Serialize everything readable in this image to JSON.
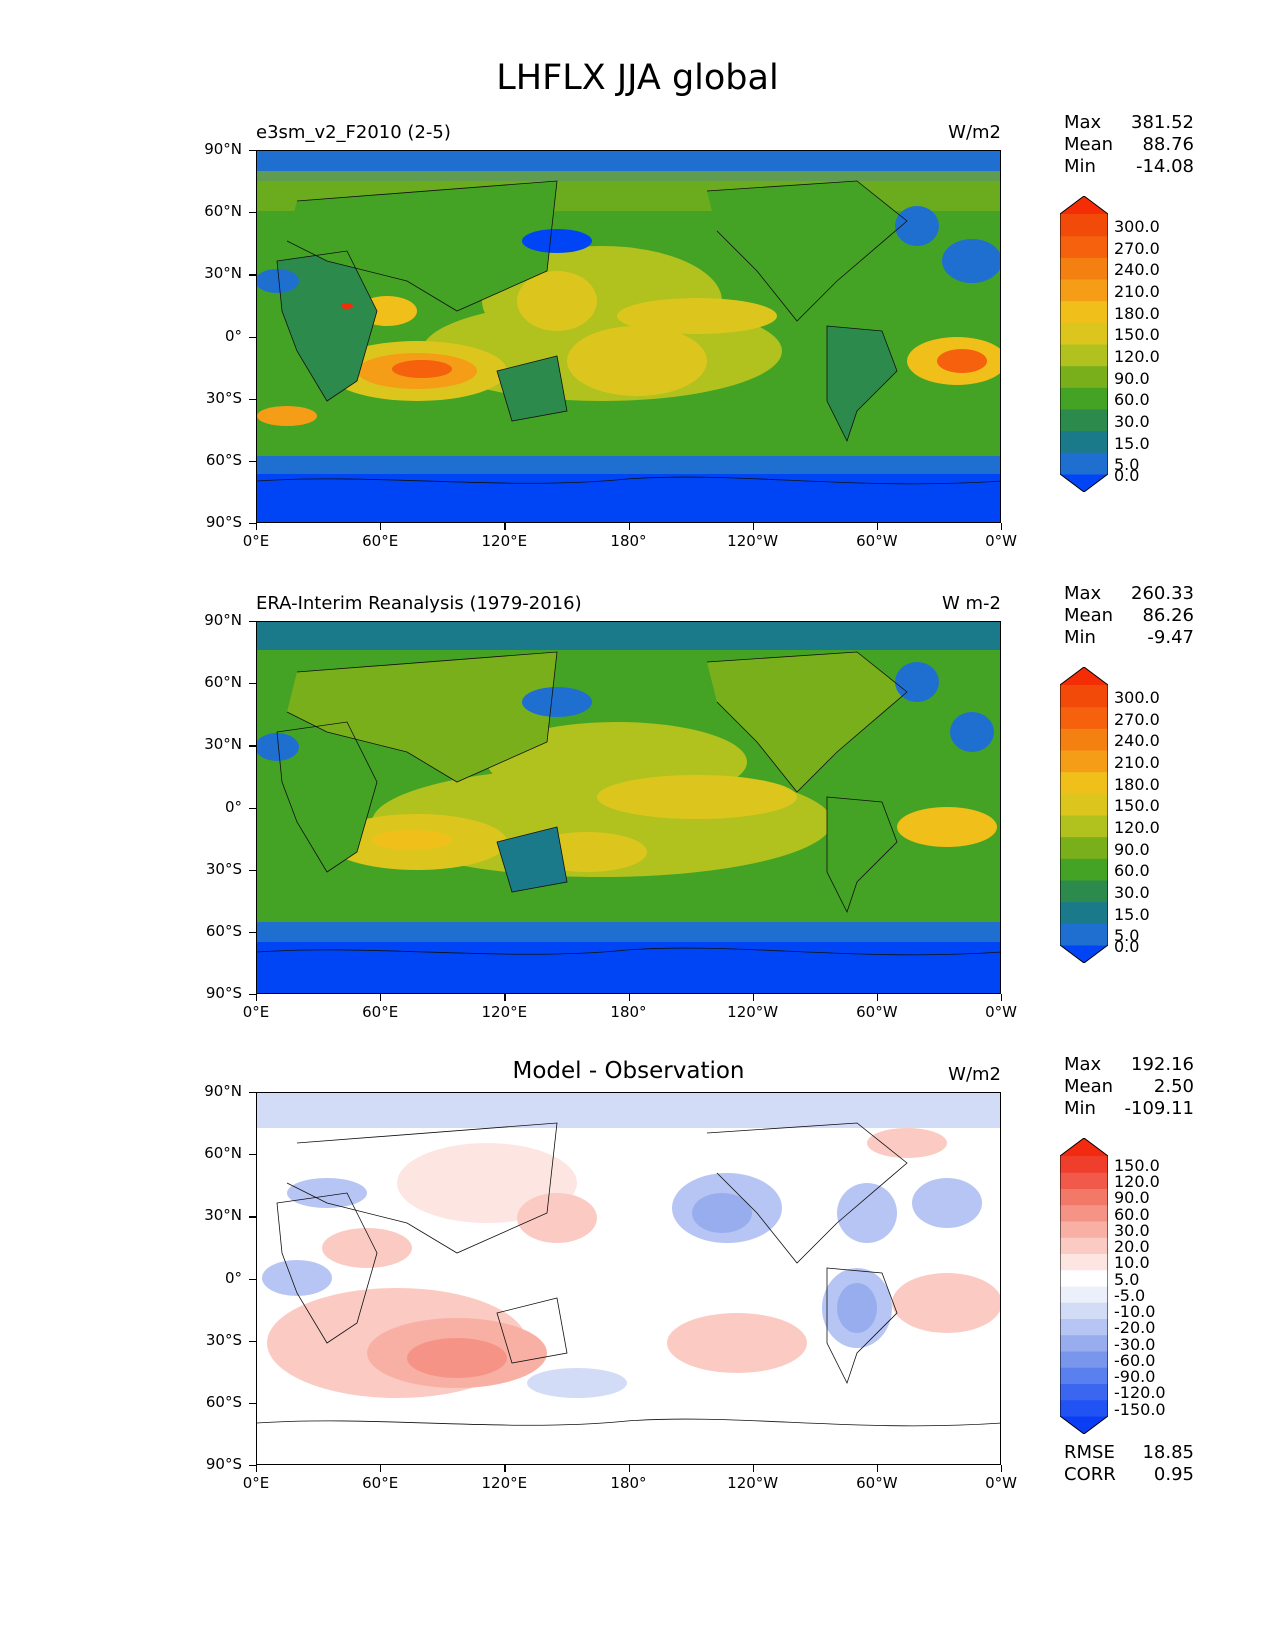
{
  "figure_title": "LHFLX JJA global",
  "lat_ticks": [
    "90°N",
    "60°N",
    "30°N",
    "0°",
    "30°S",
    "60°S",
    "90°S"
  ],
  "lon_ticks": [
    "0°E",
    "60°E",
    "120°E",
    "180°",
    "120°W",
    "60°W",
    "0°W"
  ],
  "panels": [
    {
      "title_left": "e3sm_v2_F2010 (2-5)",
      "title_center": "",
      "units": "W/m2",
      "stats": {
        "max_label": "Max",
        "max": "381.52",
        "mean_label": "Mean",
        "mean": "88.76",
        "min_label": "Min",
        "min": "-14.08"
      },
      "colorbar": {
        "labels": [
          "300.0",
          "270.0",
          "240.0",
          "210.0",
          "180.0",
          "150.0",
          "120.0",
          "90.0",
          "60.0",
          "30.0",
          "15.0",
          "5.0",
          "0.0"
        ],
        "colors": [
          "#0045f5",
          "#1f6fd1",
          "#1b7a8a",
          "#2c8a4c",
          "#44a324",
          "#7aaf1c",
          "#b1c11e",
          "#dcc61e",
          "#f0bf1a",
          "#f59d17",
          "#f58012",
          "#f5610c",
          "#f24a08",
          "#f42d06"
        ]
      }
    },
    {
      "title_left": "ERA-Interim Reanalysis (1979-2016)",
      "title_center": "",
      "units": "W m-2",
      "stats": {
        "max_label": "Max",
        "max": "260.33",
        "mean_label": "Mean",
        "mean": "86.26",
        "min_label": "Min",
        "min": "-9.47"
      },
      "colorbar": {
        "labels": [
          "300.0",
          "270.0",
          "240.0",
          "210.0",
          "180.0",
          "150.0",
          "120.0",
          "90.0",
          "60.0",
          "30.0",
          "15.0",
          "5.0",
          "0.0"
        ],
        "colors": [
          "#0045f5",
          "#1f6fd1",
          "#1b7a8a",
          "#2c8a4c",
          "#44a324",
          "#7aaf1c",
          "#b1c11e",
          "#dcc61e",
          "#f0bf1a",
          "#f59d17",
          "#f58012",
          "#f5610c",
          "#f24a08",
          "#f42d06"
        ]
      }
    },
    {
      "title_left": "",
      "title_center": "Model - Observation",
      "units": "W/m2",
      "stats": {
        "max_label": "Max",
        "max": "192.16",
        "mean_label": "Mean",
        "mean": "2.50",
        "min_label": "Min",
        "min": "-109.11"
      },
      "colorbar": {
        "labels": [
          "150.0",
          "120.0",
          "90.0",
          "60.0",
          "30.0",
          "20.0",
          "10.0",
          "5.0",
          "-5.0",
          "-10.0",
          "-20.0",
          "-30.0",
          "-60.0",
          "-90.0",
          "-120.0",
          "-150.0"
        ],
        "colors": [
          "#0b3df5",
          "#2152f3",
          "#3b66ef",
          "#5980ee",
          "#7896ec",
          "#97adee",
          "#b6c5f3",
          "#d3dcf7",
          "#ecf0fb",
          "#ffffff",
          "#fde6e2",
          "#fbcbc3",
          "#f8b0a4",
          "#f59486",
          "#f27868",
          "#f15a4a",
          "#f03e2c",
          "#f22a10"
        ]
      },
      "rmse_label": "RMSE",
      "rmse": "18.85",
      "corr_label": "CORR",
      "corr": "0.95"
    }
  ]
}
